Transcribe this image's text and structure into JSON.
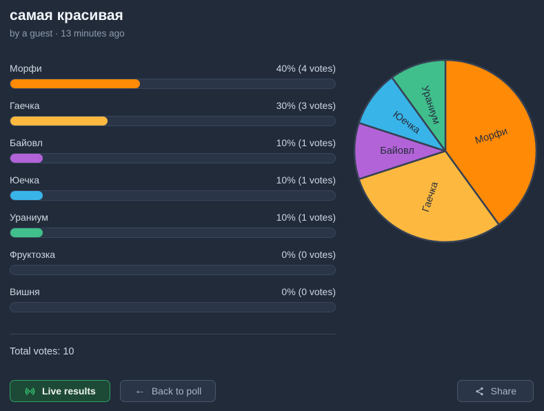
{
  "header": {
    "title": "самая красивая",
    "byline": "by a guest · 13 minutes ago"
  },
  "poll": {
    "options": [
      {
        "label": "Морфи",
        "result": "40% (4 votes)",
        "percent": 40,
        "votes": 4,
        "color": "#ff8a05"
      },
      {
        "label": "Гаечка",
        "result": "30% (3 votes)",
        "percent": 30,
        "votes": 3,
        "color": "#fdb93f"
      },
      {
        "label": "Байовл",
        "result": "10% (1 votes)",
        "percent": 10,
        "votes": 1,
        "color": "#b263d8"
      },
      {
        "label": "Юечка",
        "result": "10% (1 votes)",
        "percent": 10,
        "votes": 1,
        "color": "#38b4e8"
      },
      {
        "label": "Ураниум",
        "result": "10% (1 votes)",
        "percent": 10,
        "votes": 1,
        "color": "#40bf8d"
      },
      {
        "label": "Фруктозка",
        "result": "0% (0 votes)",
        "percent": 0,
        "votes": 0,
        "color": null
      },
      {
        "label": "Вишня",
        "result": "0% (0 votes)",
        "percent": 0,
        "votes": 0,
        "color": null
      }
    ],
    "total": "Total votes: 10"
  },
  "buttons": {
    "live": "Live results",
    "back": "Back to poll",
    "share": "Share"
  },
  "icons": {
    "live": "broadcast-waves-icon",
    "back_arrow": "←",
    "share": "share-nodes-icon"
  },
  "colors": {
    "background": "#212b3a",
    "accent_green": "#37d277",
    "track": "#2a3648",
    "divider": "#3a4759"
  },
  "chart_data": {
    "type": "pie",
    "title": "самая красивая",
    "categories": [
      "Морфи",
      "Гаечка",
      "Байовл",
      "Юечка",
      "Ураниум"
    ],
    "values": [
      40,
      30,
      10,
      10,
      10
    ],
    "votes": [
      4,
      3,
      1,
      1,
      1
    ],
    "colors": [
      "#ff8a05",
      "#fdb93f",
      "#b263d8",
      "#38b4e8",
      "#40bf8d"
    ],
    "start_angle_deg": 0,
    "direction": "clockwise",
    "labels_position": "inside-radial",
    "label_color": "#272e3d",
    "stroke_color": "#364153",
    "legend": "none"
  }
}
